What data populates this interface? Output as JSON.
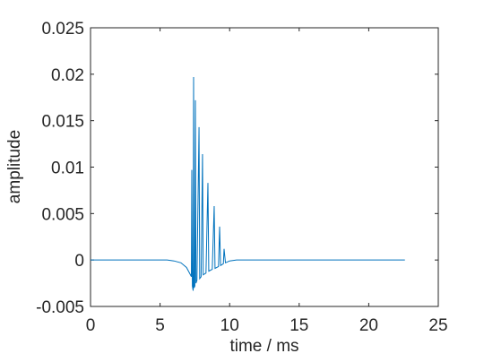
{
  "chart_data": {
    "type": "line",
    "xlabel": "time / ms",
    "ylabel": "amplitude",
    "x": [
      0,
      5.5,
      6.0,
      6.5,
      6.9,
      7.15,
      7.25,
      7.28,
      7.32,
      7.38,
      7.41,
      7.44,
      7.5,
      7.54,
      7.58,
      7.65,
      7.8,
      7.85,
      7.95,
      8.05,
      8.1,
      8.3,
      8.44,
      8.5,
      8.75,
      8.89,
      8.95,
      9.2,
      9.28,
      9.35,
      9.55,
      9.6,
      9.7,
      10,
      10.5,
      22.6
    ],
    "values": [
      0,
      0,
      -0.0001,
      -0.0003,
      -0.0008,
      -0.0015,
      -0.0018,
      0.0097,
      -0.0028,
      -0.0033,
      0.0197,
      -0.003,
      -0.0028,
      0.0172,
      -0.0025,
      -0.0022,
      0.0143,
      -0.002,
      -0.0018,
      0.0114,
      -0.0016,
      -0.0014,
      0.0083,
      -0.0012,
      -0.001,
      0.0058,
      -0.0009,
      -0.0007,
      0.0036,
      -0.0006,
      -0.0004,
      0.0012,
      -0.0003,
      -0.0001,
      0,
      0
    ],
    "color": "#0072bd",
    "xlim": [
      0,
      25
    ],
    "xticks": [
      0,
      5,
      10,
      15,
      20,
      25
    ],
    "ylim": [
      -0.005,
      0.025
    ],
    "yticks": [
      -0.005,
      0,
      0.005,
      0.01,
      0.015,
      0.02,
      0.025
    ]
  }
}
